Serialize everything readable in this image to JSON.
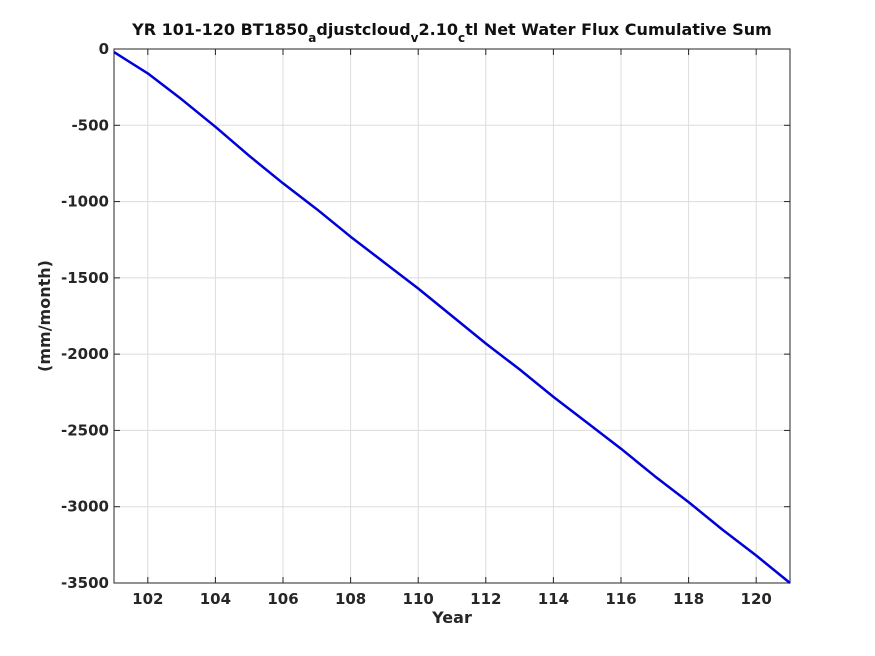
{
  "chart_data": {
    "type": "line",
    "title_parts": [
      {
        "text": "YR 101-120 BT1850"
      },
      {
        "text": "a",
        "sub": true
      },
      {
        "text": "djustcloud"
      },
      {
        "text": "v",
        "sub": true
      },
      {
        "text": "2.10"
      },
      {
        "text": "c",
        "sub": true
      },
      {
        "text": "tl Net Water Flux Cumulative Sum"
      }
    ],
    "xlabel": "Year",
    "ylabel": "(mm/month)",
    "xlim": [
      101,
      121
    ],
    "ylim": [
      -3500,
      0
    ],
    "xticks": [
      102,
      104,
      106,
      108,
      110,
      112,
      114,
      116,
      118,
      120
    ],
    "yticks": [
      0,
      -500,
      -1000,
      -1500,
      -2000,
      -2500,
      -3000,
      -3500
    ],
    "xtick_labels": [
      "102",
      "104",
      "106",
      "108",
      "110",
      "112",
      "114",
      "116",
      "118",
      "120"
    ],
    "ytick_labels": [
      "0",
      "-500",
      "-1000",
      "-1500",
      "-2000",
      "-2500",
      "-3000",
      "-3500"
    ],
    "grid": true,
    "series": [
      {
        "color": "#0000d8",
        "x": [
          101.0,
          102.0,
          103.0,
          104.0,
          105.0,
          106.0,
          107.0,
          108.0,
          109.0,
          110.0,
          111.0,
          112.0,
          113.0,
          114.0,
          115.0,
          116.0,
          117.0,
          118.0,
          119.0,
          120.0,
          121.0
        ],
        "y": [
          -20,
          -160,
          -330,
          -510,
          -700,
          -880,
          -1050,
          -1230,
          -1400,
          -1570,
          -1750,
          -1930,
          -2100,
          -2280,
          -2450,
          -2620,
          -2800,
          -2970,
          -3150,
          -3320,
          -3500
        ]
      }
    ]
  }
}
